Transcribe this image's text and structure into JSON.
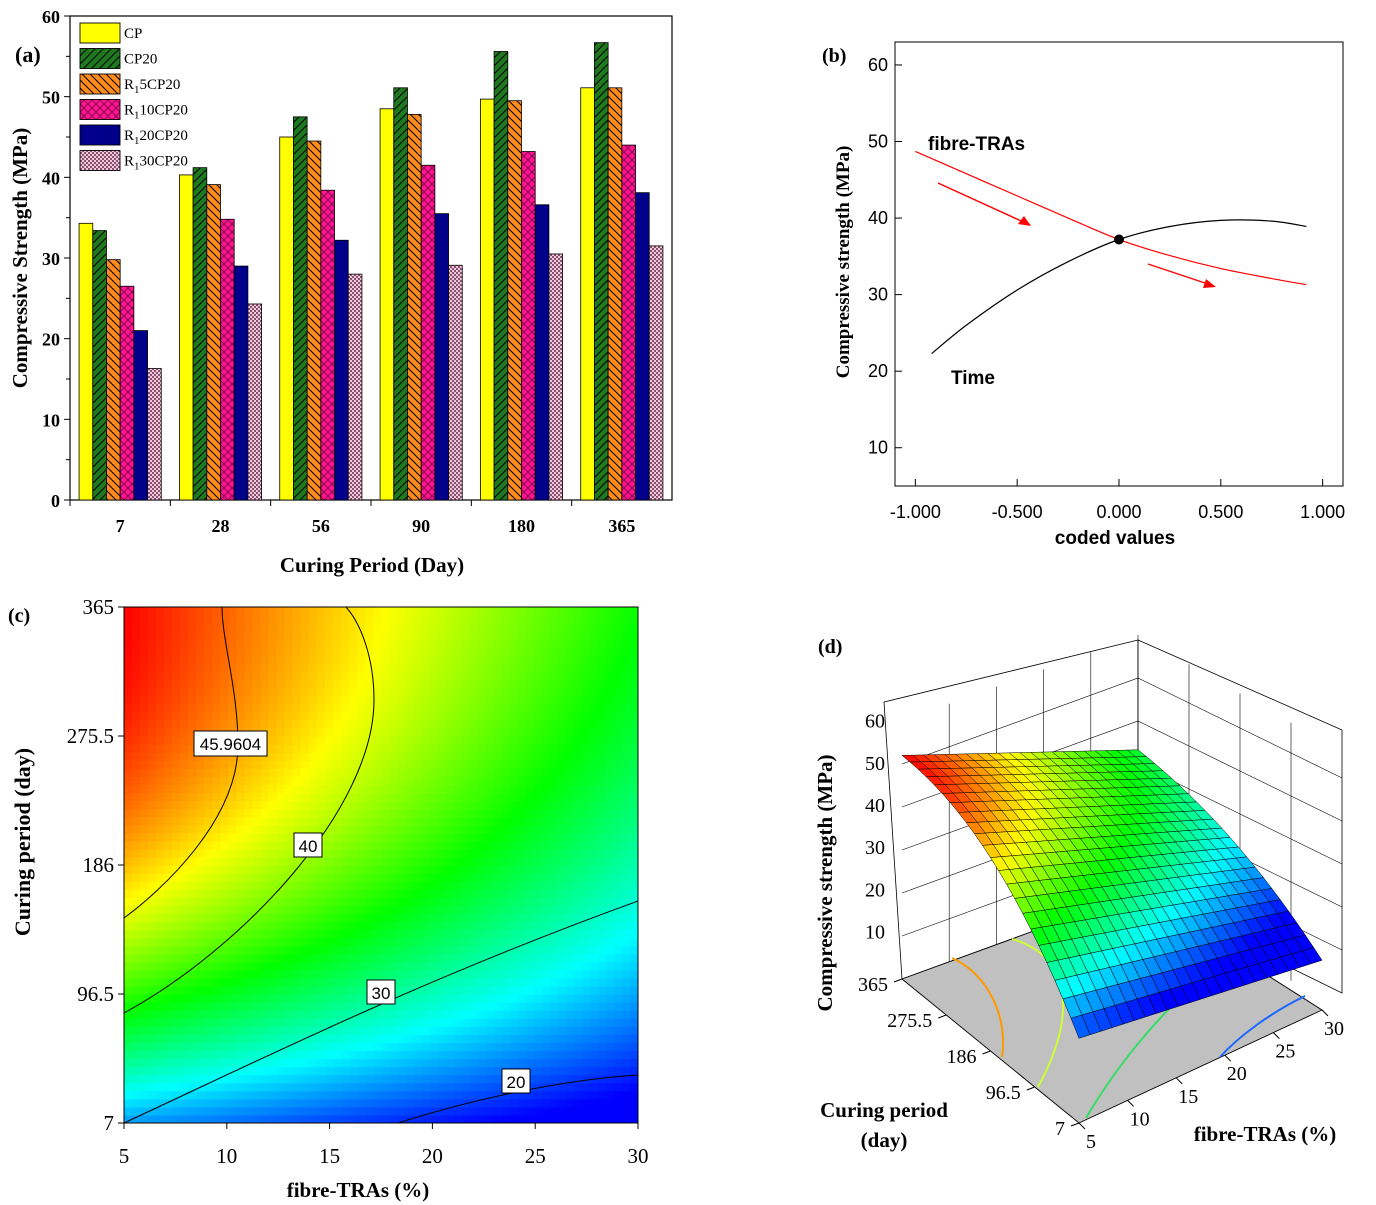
{
  "chart_data": [
    {
      "panel": "(a)",
      "type": "bar",
      "xlabel": "Curing Period (Day)",
      "ylabel": "Compressive Strength (MPa)",
      "ylim": [
        0,
        60
      ],
      "yticks": [
        "0",
        "10",
        "20",
        "30",
        "40",
        "50",
        "60"
      ],
      "categories": [
        "7",
        "28",
        "56",
        "90",
        "180",
        "365"
      ],
      "legend_position": "top-left",
      "series": [
        {
          "name": "CP",
          "color": "#ffff00",
          "pattern": "solid",
          "values": [
            34.3,
            40.3,
            45.0,
            48.5,
            49.7,
            51.1
          ]
        },
        {
          "name": "CP20",
          "color": "#1f7a1f",
          "pattern": "diag-right",
          "values": [
            33.4,
            41.2,
            47.5,
            51.1,
            55.6,
            56.7
          ]
        },
        {
          "name": "R_1 5CP20",
          "legend_parts": [
            "R",
            "1",
            "5CP20"
          ],
          "color": "#ff8c1a",
          "pattern": "diag-left",
          "values": [
            29.8,
            39.1,
            44.5,
            47.8,
            49.5,
            51.1
          ]
        },
        {
          "name": "R_1 10CP20",
          "legend_parts": [
            "R",
            "1",
            "10CP20"
          ],
          "color": "#ff1493",
          "pattern": "cross",
          "values": [
            26.5,
            34.8,
            38.4,
            41.5,
            43.2,
            44.0
          ]
        },
        {
          "name": "R_1 20CP20",
          "legend_parts": [
            "R",
            "1",
            "20CP20"
          ],
          "color": "#00008b",
          "pattern": "solid",
          "values": [
            21.0,
            29.0,
            32.2,
            35.5,
            36.6,
            38.1
          ]
        },
        {
          "name": "R_1 30CP20",
          "legend_parts": [
            "R",
            "1",
            "30CP20"
          ],
          "color": "#e4a8c8",
          "pattern": "dots",
          "values": [
            16.3,
            24.3,
            28.0,
            29.1,
            30.5,
            31.5
          ]
        }
      ]
    },
    {
      "panel": "(b)",
      "type": "line",
      "xlabel": "coded values",
      "ylabel": "Compressive strength (MPa)",
      "xlim": [
        -1.1,
        1.1
      ],
      "ylim": [
        5,
        63
      ],
      "xticks": [
        "-1.000",
        "-0.500",
        "0.000",
        "0.500",
        "1.000"
      ],
      "yticks": [
        "10",
        "20",
        "30",
        "40",
        "50",
        "60"
      ],
      "series": [
        {
          "name": "fibre-TRAs",
          "color": "#ff0000",
          "x": [
            -1.0,
            -0.75,
            -0.5,
            -0.25,
            0.0,
            0.25,
            0.5,
            0.75,
            0.92
          ],
          "y": [
            48.7,
            45.8,
            42.9,
            40.0,
            37.2,
            35.1,
            33.4,
            32.1,
            31.3
          ]
        },
        {
          "name": "Time",
          "color": "#000000",
          "x": [
            -0.92,
            -0.75,
            -0.5,
            -0.25,
            0.0,
            0.25,
            0.5,
            0.75,
            0.92
          ],
          "y": [
            22.3,
            26.0,
            30.6,
            34.3,
            37.2,
            38.9,
            39.7,
            39.6,
            38.9
          ]
        }
      ],
      "center_point": {
        "x": 0.0,
        "y": 37.2
      }
    },
    {
      "panel": "(c)",
      "type": "heatmap",
      "xlabel": "fibre-TRAs (%)",
      "ylabel": "Curing period (day)",
      "xlim": [
        5,
        30
      ],
      "ylim": [
        7,
        365
      ],
      "xticks": [
        "5",
        "10",
        "15",
        "20",
        "25",
        "30"
      ],
      "yticks": [
        "7",
        "96.5",
        "186",
        "275.5",
        "365"
      ],
      "contour_labels": [
        "45.9604",
        "40",
        "30",
        "20"
      ],
      "contour_levels": [
        45.9604,
        40,
        30,
        20
      ],
      "colormap": [
        "#0000ff",
        "#00ffff",
        "#00ff00",
        "#ffff00",
        "#ff0000"
      ]
    },
    {
      "panel": "(d)",
      "type": "surface",
      "zlabel": "Compressive strength (MPa)",
      "ylabel": "Curing period (day)",
      "ylabel_lines": [
        "Curing period",
        "(day)"
      ],
      "xlabel": "fibre-TRAs (%)",
      "zticks": [
        "10",
        "20",
        "30",
        "40",
        "50",
        "60"
      ],
      "yticks": [
        "365",
        "275.5",
        "186",
        "96.5",
        "7"
      ],
      "xticks": [
        "5",
        "10",
        "15",
        "20",
        "25",
        "30"
      ]
    }
  ],
  "labels": {
    "panel_a": "(a)",
    "panel_b": "(b)",
    "panel_c": "(c)",
    "panel_d": "(d)",
    "b_series_fibre": "fibre-TRAs",
    "b_series_time": "Time"
  }
}
